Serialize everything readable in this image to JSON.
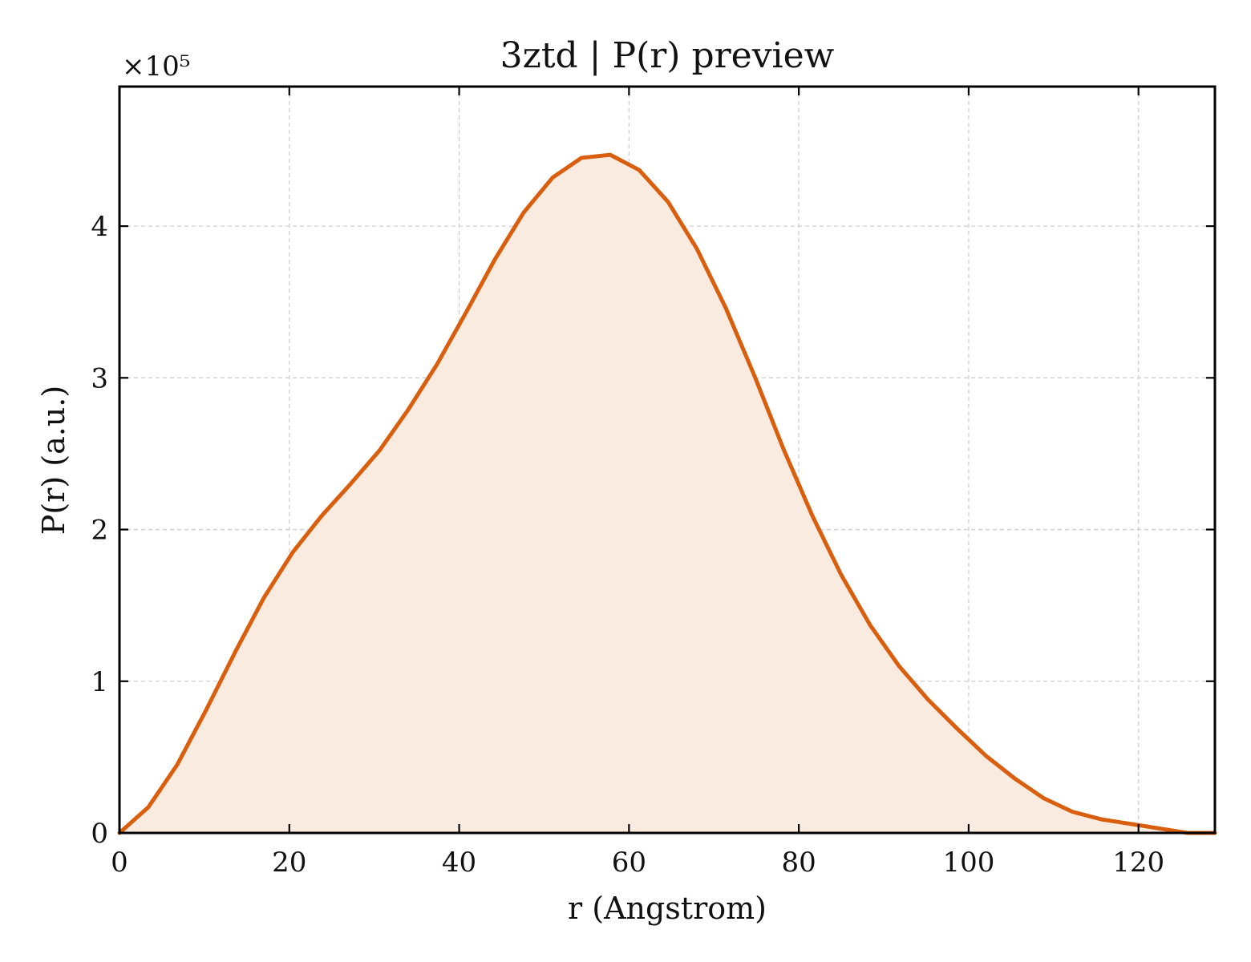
{
  "chart_data": {
    "type": "area",
    "title": "3ztd | P(r) preview",
    "xlabel": "r (Angstrom)",
    "ylabel": "P(r) (a.u.)",
    "y_multiplier_label": "×10⁵",
    "xlim": [
      0,
      129
    ],
    "ylim": [
      0,
      4.92
    ],
    "x_ticks": [
      0,
      20,
      40,
      60,
      80,
      100,
      120
    ],
    "y_ticks": [
      0,
      1,
      2,
      3,
      4
    ],
    "grid": true,
    "legend": "none",
    "colors": {
      "line": "#d95f0e",
      "fill": "#f9ebe0"
    },
    "series": [
      {
        "x": [
          0,
          3.4,
          6.8,
          10.2,
          13.6,
          17.0,
          20.4,
          23.8,
          27.2,
          30.6,
          34.0,
          37.4,
          40.8,
          44.2,
          47.6,
          51.0,
          54.4,
          57.8,
          61.2,
          64.6,
          68.0,
          71.4,
          74.8,
          78.2,
          81.6,
          85.0,
          88.4,
          91.8,
          95.2,
          98.6,
          102.0,
          105.4,
          108.8,
          112.2,
          115.6,
          119.0,
          122.4,
          125.8,
          129.0
        ],
        "y": [
          0.0,
          0.17,
          0.45,
          0.81,
          1.19,
          1.55,
          1.85,
          2.09,
          2.3,
          2.52,
          2.79,
          3.09,
          3.43,
          3.78,
          4.09,
          4.32,
          4.45,
          4.47,
          4.37,
          4.16,
          3.85,
          3.46,
          3.01,
          2.53,
          2.09,
          1.7,
          1.37,
          1.1,
          0.88,
          0.69,
          0.51,
          0.36,
          0.23,
          0.14,
          0.09,
          0.06,
          0.03,
          0.0,
          0.0
        ]
      }
    ]
  }
}
